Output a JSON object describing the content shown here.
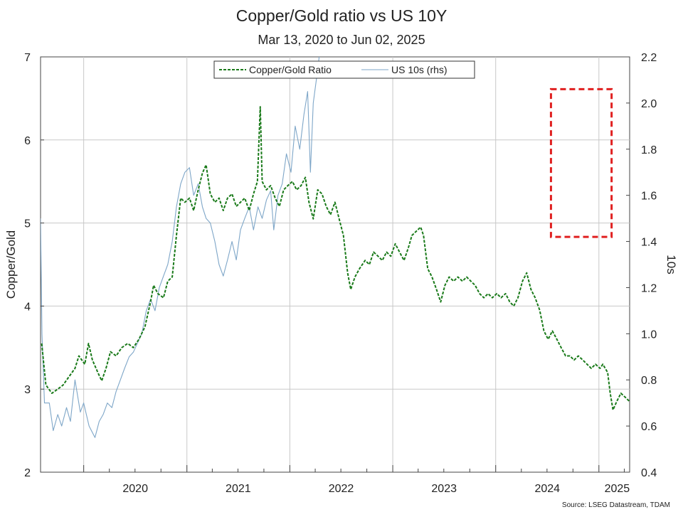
{
  "chart_data": {
    "type": "line",
    "title": "Copper/Gold ratio vs US 10Y",
    "subtitle": "Mar 13, 2020 to Jun 02, 2025",
    "ylabel": "Copper/Gold",
    "ylabel_right": "10s",
    "source": "Source: LSEG Datastream, TDAM",
    "x_range": [
      "2019-08-01",
      "2025-04-20"
    ],
    "ylim": [
      2,
      7
    ],
    "ylim_right": [
      0.4,
      2.2
    ],
    "x_ticks": [
      "2020",
      "2021",
      "2022",
      "2023",
      "2024",
      "2025"
    ],
    "y_ticks": [
      "2",
      "3",
      "4",
      "5",
      "6",
      "7"
    ],
    "y_ticks_right": [
      "0.4",
      "0.6",
      "0.8",
      "1.0",
      "1.2",
      "1.4",
      "1.6",
      "1.8",
      "2.0",
      "2.2"
    ],
    "grid": true,
    "legend_position": "top-center",
    "annotation": {
      "type": "dashed-rectangle",
      "color": "#e02020",
      "x": [
        "2024-07-15",
        "2025-02-15"
      ],
      "y_right": [
        1.42,
        2.06
      ]
    },
    "series": [
      {
        "name": "Copper/Gold Ratio",
        "axis": "left",
        "color": "#1a7a1a",
        "style": "dashed",
        "points": [
          [
            "2019-08-05",
            3.55
          ],
          [
            "2019-08-20",
            3.05
          ],
          [
            "2019-09-10",
            2.95
          ],
          [
            "2019-10-01",
            3.0
          ],
          [
            "2019-10-20",
            3.05
          ],
          [
            "2019-11-10",
            3.15
          ],
          [
            "2019-12-01",
            3.25
          ],
          [
            "2019-12-15",
            3.4
          ],
          [
            "2020-01-05",
            3.3
          ],
          [
            "2020-01-18",
            3.55
          ],
          [
            "2020-02-01",
            3.35
          ],
          [
            "2020-02-20",
            3.2
          ],
          [
            "2020-03-05",
            3.1
          ],
          [
            "2020-03-20",
            3.25
          ],
          [
            "2020-04-05",
            3.45
          ],
          [
            "2020-04-25",
            3.4
          ],
          [
            "2020-05-15",
            3.5
          ],
          [
            "2020-06-05",
            3.55
          ],
          [
            "2020-06-25",
            3.5
          ],
          [
            "2020-07-15",
            3.6
          ],
          [
            "2020-08-05",
            3.75
          ],
          [
            "2020-08-25",
            4.05
          ],
          [
            "2020-09-05",
            4.25
          ],
          [
            "2020-09-20",
            4.15
          ],
          [
            "2020-10-10",
            4.1
          ],
          [
            "2020-10-25",
            4.3
          ],
          [
            "2020-11-10",
            4.35
          ],
          [
            "2020-11-25",
            4.85
          ],
          [
            "2020-12-10",
            5.3
          ],
          [
            "2020-12-25",
            5.25
          ],
          [
            "2021-01-10",
            5.3
          ],
          [
            "2021-01-25",
            5.15
          ],
          [
            "2021-02-10",
            5.4
          ],
          [
            "2021-02-25",
            5.6
          ],
          [
            "2021-03-10",
            5.7
          ],
          [
            "2021-03-25",
            5.35
          ],
          [
            "2021-04-10",
            5.25
          ],
          [
            "2021-04-25",
            5.3
          ],
          [
            "2021-05-10",
            5.15
          ],
          [
            "2021-05-25",
            5.3
          ],
          [
            "2021-06-10",
            5.35
          ],
          [
            "2021-06-25",
            5.2
          ],
          [
            "2021-07-10",
            5.25
          ],
          [
            "2021-07-25",
            5.3
          ],
          [
            "2021-08-10",
            5.15
          ],
          [
            "2021-08-25",
            5.35
          ],
          [
            "2021-09-08",
            5.5
          ],
          [
            "2021-09-18",
            6.4
          ],
          [
            "2021-09-25",
            5.5
          ],
          [
            "2021-10-10",
            5.4
          ],
          [
            "2021-10-25",
            5.45
          ],
          [
            "2021-11-10",
            5.3
          ],
          [
            "2021-11-25",
            5.2
          ],
          [
            "2021-12-10",
            5.4
          ],
          [
            "2021-12-25",
            5.45
          ],
          [
            "2022-01-10",
            5.5
          ],
          [
            "2022-01-25",
            5.4
          ],
          [
            "2022-02-10",
            5.45
          ],
          [
            "2022-02-25",
            5.55
          ],
          [
            "2022-03-10",
            5.25
          ],
          [
            "2022-03-25",
            5.05
          ],
          [
            "2022-04-10",
            5.4
          ],
          [
            "2022-04-25",
            5.35
          ],
          [
            "2022-05-10",
            5.2
          ],
          [
            "2022-05-25",
            5.1
          ],
          [
            "2022-06-10",
            5.25
          ],
          [
            "2022-06-25",
            5.05
          ],
          [
            "2022-07-10",
            4.85
          ],
          [
            "2022-07-25",
            4.4
          ],
          [
            "2022-08-05",
            4.2
          ],
          [
            "2022-08-20",
            4.35
          ],
          [
            "2022-09-05",
            4.45
          ],
          [
            "2022-09-25",
            4.55
          ],
          [
            "2022-10-10",
            4.5
          ],
          [
            "2022-10-25",
            4.65
          ],
          [
            "2022-11-10",
            4.6
          ],
          [
            "2022-11-25",
            4.55
          ],
          [
            "2022-12-10",
            4.65
          ],
          [
            "2022-12-25",
            4.6
          ],
          [
            "2023-01-10",
            4.75
          ],
          [
            "2023-01-25",
            4.65
          ],
          [
            "2023-02-10",
            4.55
          ],
          [
            "2023-02-25",
            4.7
          ],
          [
            "2023-03-10",
            4.85
          ],
          [
            "2023-03-25",
            4.9
          ],
          [
            "2023-04-10",
            4.95
          ],
          [
            "2023-04-20",
            4.85
          ],
          [
            "2023-05-05",
            4.45
          ],
          [
            "2023-05-20",
            4.35
          ],
          [
            "2023-06-05",
            4.2
          ],
          [
            "2023-06-20",
            4.05
          ],
          [
            "2023-07-05",
            4.25
          ],
          [
            "2023-07-20",
            4.35
          ],
          [
            "2023-08-05",
            4.3
          ],
          [
            "2023-08-20",
            4.35
          ],
          [
            "2023-09-05",
            4.3
          ],
          [
            "2023-09-20",
            4.35
          ],
          [
            "2023-10-05",
            4.3
          ],
          [
            "2023-10-20",
            4.25
          ],
          [
            "2023-11-05",
            4.15
          ],
          [
            "2023-11-20",
            4.1
          ],
          [
            "2023-12-05",
            4.15
          ],
          [
            "2023-12-20",
            4.1
          ],
          [
            "2024-01-05",
            4.15
          ],
          [
            "2024-01-20",
            4.1
          ],
          [
            "2024-02-05",
            4.15
          ],
          [
            "2024-02-20",
            4.05
          ],
          [
            "2024-03-05",
            4.0
          ],
          [
            "2024-03-20",
            4.1
          ],
          [
            "2024-04-05",
            4.3
          ],
          [
            "2024-04-20",
            4.4
          ],
          [
            "2024-05-05",
            4.2
          ],
          [
            "2024-05-20",
            4.1
          ],
          [
            "2024-06-05",
            3.95
          ],
          [
            "2024-06-20",
            3.7
          ],
          [
            "2024-07-05",
            3.6
          ],
          [
            "2024-07-20",
            3.7
          ],
          [
            "2024-08-05",
            3.6
          ],
          [
            "2024-08-20",
            3.5
          ],
          [
            "2024-09-05",
            3.4
          ],
          [
            "2024-09-20",
            3.4
          ],
          [
            "2024-10-05",
            3.35
          ],
          [
            "2024-10-20",
            3.4
          ],
          [
            "2024-11-05",
            3.35
          ],
          [
            "2024-11-20",
            3.3
          ],
          [
            "2024-12-05",
            3.25
          ],
          [
            "2024-12-20",
            3.3
          ],
          [
            "2025-01-05",
            3.25
          ],
          [
            "2025-01-15",
            3.3
          ],
          [
            "2025-02-01",
            3.2
          ],
          [
            "2025-02-10",
            2.95
          ],
          [
            "2025-02-20",
            2.75
          ],
          [
            "2025-03-05",
            2.85
          ],
          [
            "2025-03-20",
            2.95
          ],
          [
            "2025-04-05",
            2.9
          ],
          [
            "2025-04-20",
            2.85
          ]
        ]
      },
      {
        "name": "US 10s (rhs)",
        "axis": "right",
        "color": "#7ea6c8",
        "style": "solid",
        "points": [
          [
            "2019-08-01",
            1.5
          ],
          [
            "2019-08-06",
            1.0
          ],
          [
            "2019-08-15",
            0.7
          ],
          [
            "2019-09-01",
            0.7
          ],
          [
            "2019-09-15",
            0.58
          ],
          [
            "2019-10-01",
            0.65
          ],
          [
            "2019-10-15",
            0.6
          ],
          [
            "2019-11-01",
            0.68
          ],
          [
            "2019-11-15",
            0.62
          ],
          [
            "2019-12-01",
            0.8
          ],
          [
            "2019-12-20",
            0.66
          ],
          [
            "2020-01-01",
            0.7
          ],
          [
            "2020-01-20",
            0.6
          ],
          [
            "2020-02-10",
            0.55
          ],
          [
            "2020-02-25",
            0.62
          ],
          [
            "2020-03-10",
            0.65
          ],
          [
            "2020-03-25",
            0.7
          ],
          [
            "2020-04-10",
            0.68
          ],
          [
            "2020-04-25",
            0.75
          ],
          [
            "2020-05-10",
            0.8
          ],
          [
            "2020-05-25",
            0.85
          ],
          [
            "2020-06-10",
            0.9
          ],
          [
            "2020-06-25",
            0.92
          ],
          [
            "2020-07-10",
            0.96
          ],
          [
            "2020-07-25",
            1.0
          ],
          [
            "2020-08-10",
            1.1
          ],
          [
            "2020-08-25",
            1.15
          ],
          [
            "2020-09-10",
            1.1
          ],
          [
            "2020-09-25",
            1.2
          ],
          [
            "2020-10-10",
            1.25
          ],
          [
            "2020-10-25",
            1.3
          ],
          [
            "2020-11-10",
            1.4
          ],
          [
            "2020-11-25",
            1.55
          ],
          [
            "2020-12-10",
            1.65
          ],
          [
            "2020-12-25",
            1.7
          ],
          [
            "2021-01-10",
            1.72
          ],
          [
            "2021-01-25",
            1.6
          ],
          [
            "2021-02-10",
            1.65
          ],
          [
            "2021-02-25",
            1.55
          ],
          [
            "2021-03-10",
            1.5
          ],
          [
            "2021-03-25",
            1.48
          ],
          [
            "2021-04-10",
            1.4
          ],
          [
            "2021-04-25",
            1.3
          ],
          [
            "2021-05-10",
            1.25
          ],
          [
            "2021-05-25",
            1.32
          ],
          [
            "2021-06-10",
            1.4
          ],
          [
            "2021-06-25",
            1.32
          ],
          [
            "2021-07-10",
            1.45
          ],
          [
            "2021-07-25",
            1.5
          ],
          [
            "2021-08-10",
            1.55
          ],
          [
            "2021-08-25",
            1.45
          ],
          [
            "2021-09-10",
            1.55
          ],
          [
            "2021-09-25",
            1.5
          ],
          [
            "2021-10-10",
            1.58
          ],
          [
            "2021-10-25",
            1.62
          ],
          [
            "2021-11-05",
            1.45
          ],
          [
            "2021-11-20",
            1.6
          ],
          [
            "2021-12-05",
            1.65
          ],
          [
            "2021-12-20",
            1.78
          ],
          [
            "2022-01-05",
            1.7
          ],
          [
            "2022-01-20",
            1.9
          ],
          [
            "2022-02-05",
            1.8
          ],
          [
            "2022-02-20",
            1.95
          ],
          [
            "2022-03-05",
            2.05
          ],
          [
            "2022-03-15",
            1.7
          ],
          [
            "2022-03-25",
            2.0
          ],
          [
            "2022-04-05",
            2.1
          ],
          [
            "2022-04-15",
            2.2
          ],
          [
            "2022-04-20",
            2.3
          ]
        ]
      }
    ]
  }
}
